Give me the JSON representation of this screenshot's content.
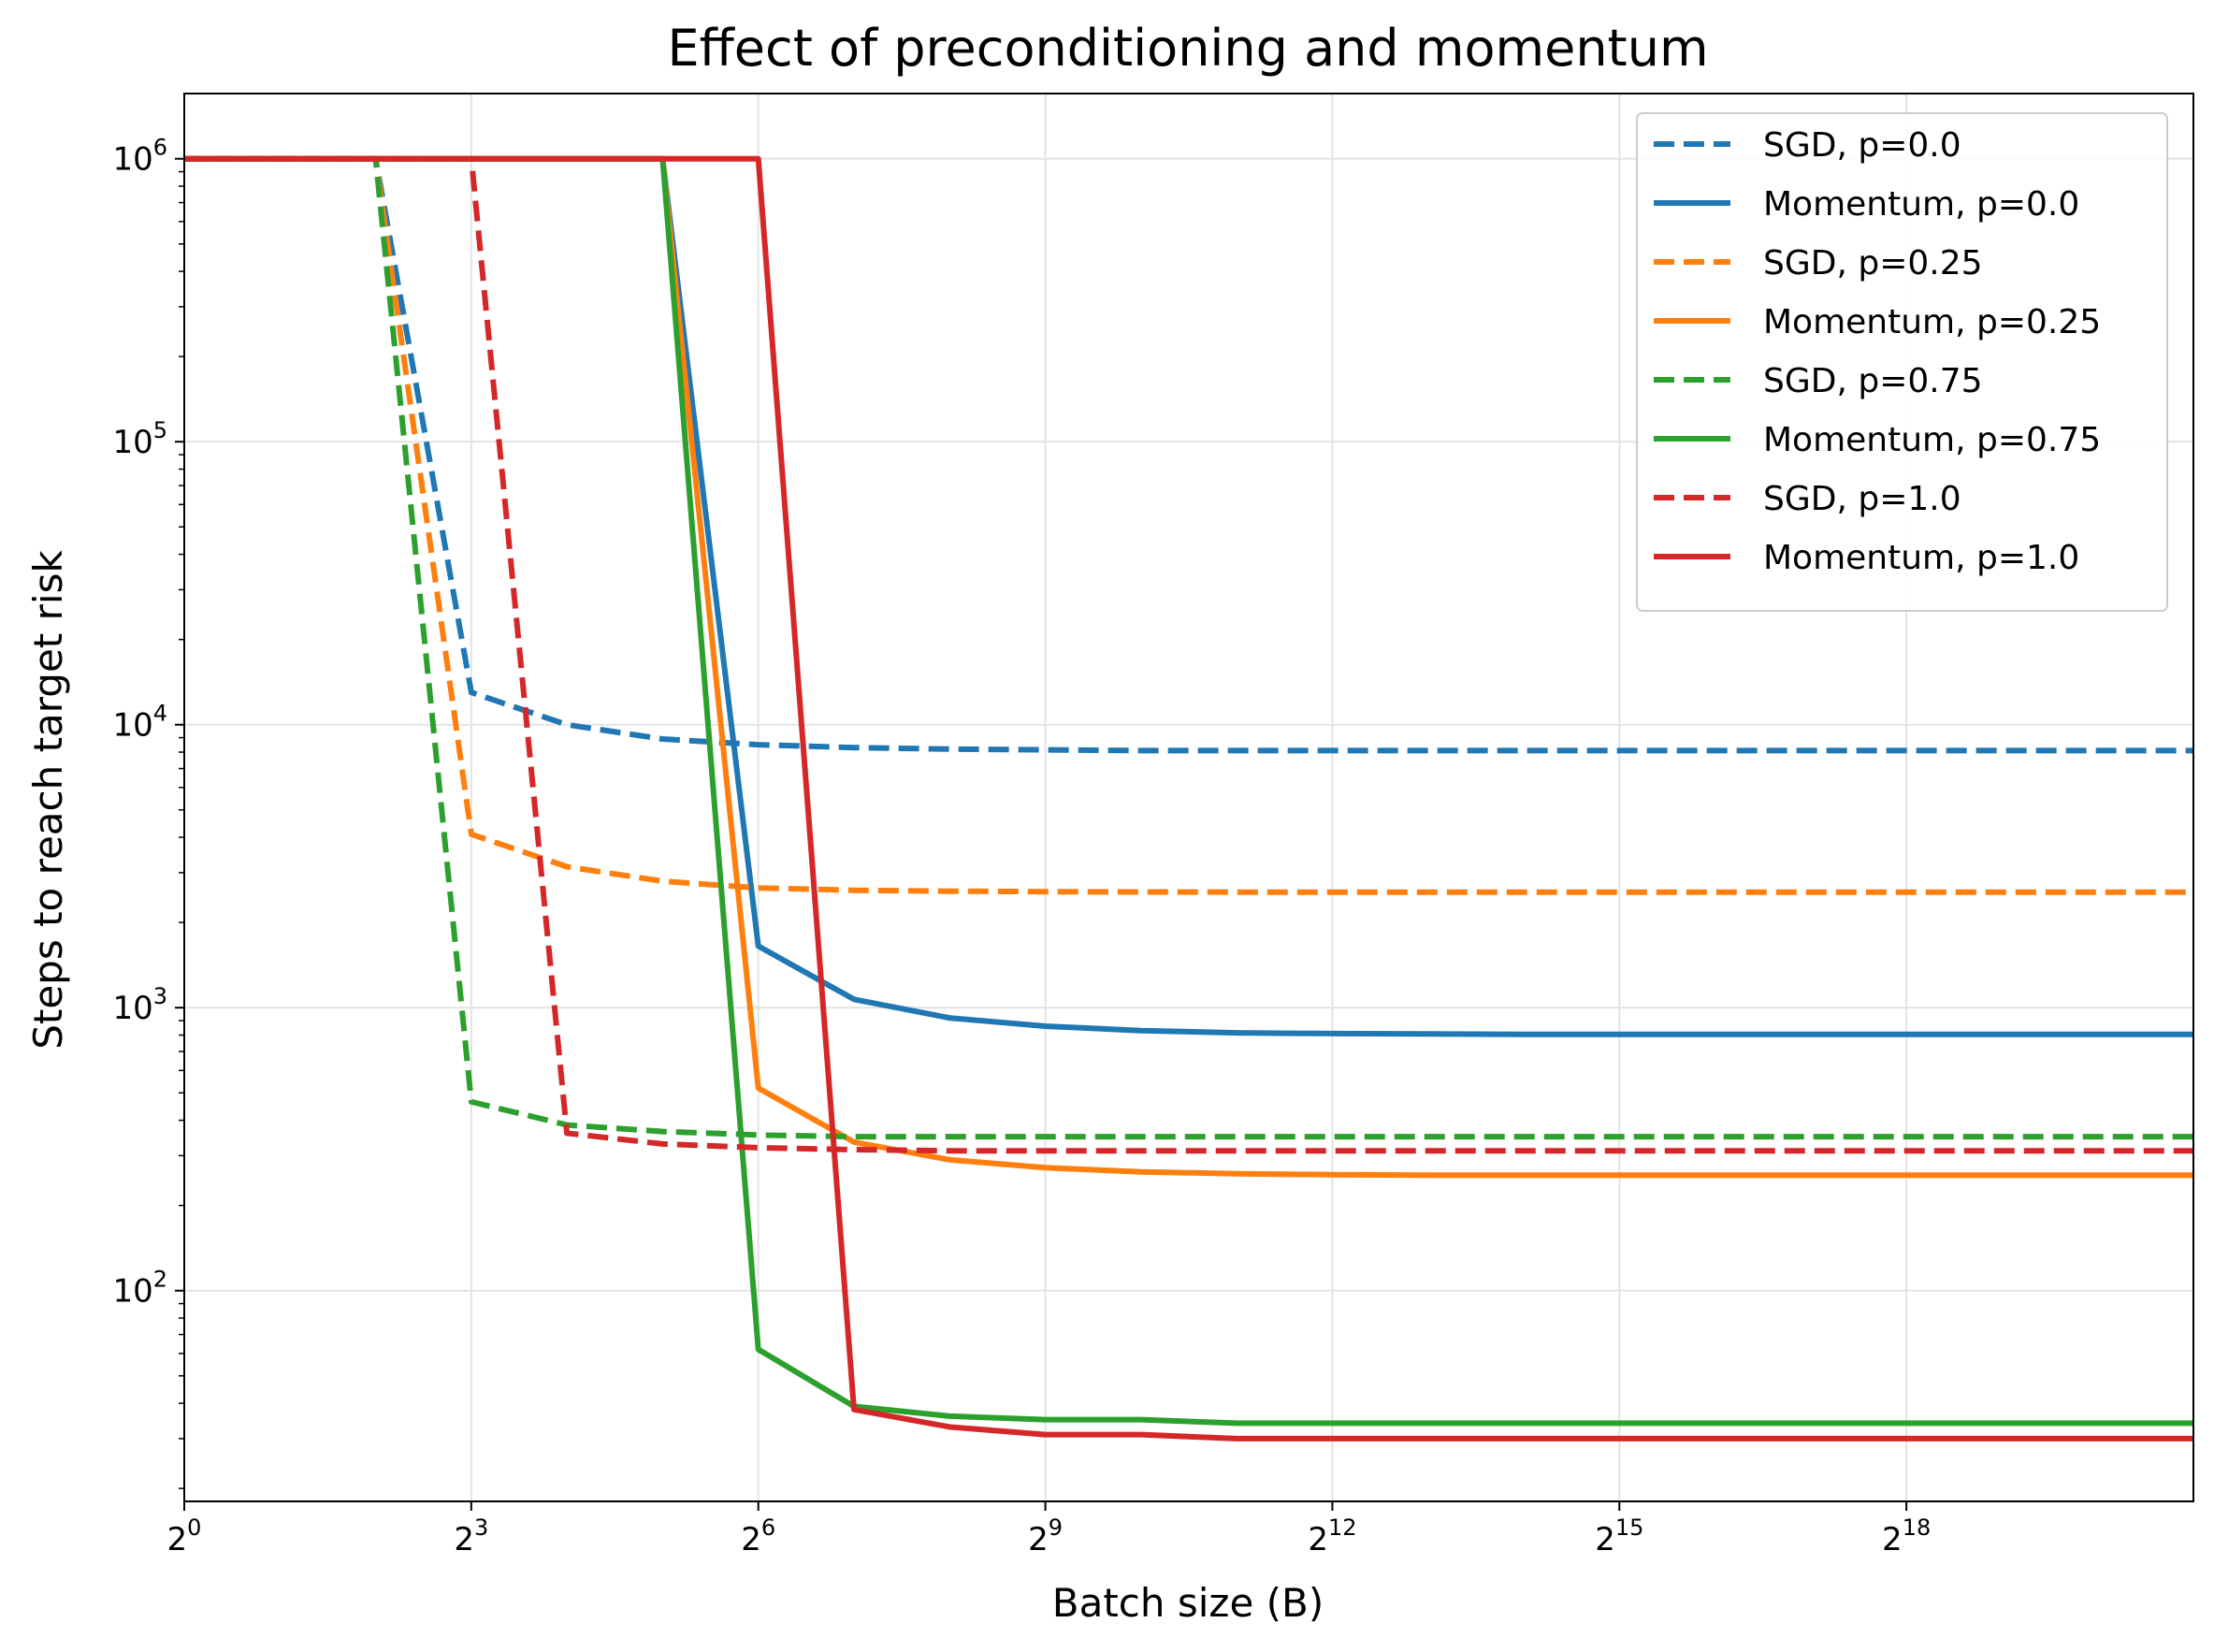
{
  "chart_data": {
    "type": "line",
    "title": "Effect of preconditioning and momentum",
    "xlabel": "Batch size (B)",
    "ylabel": "Steps to reach target risk",
    "x_scale": "log2",
    "y_scale": "log10",
    "xlim": [
      1,
      2097152
    ],
    "ylim": [
      18,
      1700000
    ],
    "x_ticks": [
      {
        "value": 1,
        "base": "2",
        "exp": "0"
      },
      {
        "value": 8,
        "base": "2",
        "exp": "3"
      },
      {
        "value": 64,
        "base": "2",
        "exp": "6"
      },
      {
        "value": 512,
        "base": "2",
        "exp": "9"
      },
      {
        "value": 4096,
        "base": "2",
        "exp": "12"
      },
      {
        "value": 32768,
        "base": "2",
        "exp": "15"
      },
      {
        "value": 262144,
        "base": "2",
        "exp": "18"
      }
    ],
    "y_ticks": [
      {
        "value": 100,
        "base": "10",
        "exp": "2"
      },
      {
        "value": 1000,
        "base": "10",
        "exp": "3"
      },
      {
        "value": 10000,
        "base": "10",
        "exp": "4"
      },
      {
        "value": 100000,
        "base": "10",
        "exp": "5"
      },
      {
        "value": 1000000,
        "base": "10",
        "exp": "6"
      }
    ],
    "grid": true,
    "legend_position": "top-right",
    "x": [
      1,
      2,
      4,
      8,
      16,
      32,
      64,
      128,
      256,
      512,
      1024,
      2048,
      4096,
      8192,
      16384,
      32768,
      65536,
      131072,
      262144,
      524288,
      1048576,
      2097152
    ],
    "series": [
      {
        "name": "SGD, p=0.0",
        "color": "#1f77b4",
        "dash": "dashed",
        "values": [
          1000000,
          1000000,
          1000000,
          13000,
          10000,
          8900,
          8500,
          8300,
          8200,
          8150,
          8100,
          8100,
          8100,
          8100,
          8100,
          8100,
          8100,
          8100,
          8100,
          8100,
          8100,
          8100
        ]
      },
      {
        "name": "Momentum, p=0.0",
        "color": "#1f77b4",
        "dash": "solid",
        "values": [
          1000000,
          1000000,
          1000000,
          1000000,
          1000000,
          1000000,
          1650,
          1070,
          920,
          860,
          830,
          815,
          810,
          808,
          805,
          805,
          805,
          805,
          805,
          805,
          805,
          805
        ]
      },
      {
        "name": "SGD, p=0.25",
        "color": "#ff7f0e",
        "dash": "dashed",
        "values": [
          1000000,
          1000000,
          1000000,
          4100,
          3150,
          2800,
          2650,
          2600,
          2580,
          2570,
          2565,
          2560,
          2560,
          2560,
          2560,
          2560,
          2560,
          2560,
          2560,
          2560,
          2560,
          2560
        ]
      },
      {
        "name": "Momentum, p=0.25",
        "color": "#ff7f0e",
        "dash": "solid",
        "values": [
          1000000,
          1000000,
          1000000,
          1000000,
          1000000,
          1000000,
          520,
          335,
          290,
          272,
          263,
          259,
          257,
          256,
          256,
          256,
          256,
          256,
          256,
          256,
          256,
          256
        ]
      },
      {
        "name": "SGD, p=0.75",
        "color": "#2ca02c",
        "dash": "dashed",
        "values": [
          1000000,
          1000000,
          1000000,
          465,
          385,
          365,
          355,
          350,
          350,
          350,
          350,
          350,
          350,
          350,
          350,
          350,
          350,
          350,
          350,
          350,
          350,
          350
        ]
      },
      {
        "name": "Momentum, p=0.75",
        "color": "#2ca02c",
        "dash": "solid",
        "values": [
          1000000,
          1000000,
          1000000,
          1000000,
          1000000,
          1000000,
          62,
          39,
          36,
          35,
          35,
          34,
          34,
          34,
          34,
          34,
          34,
          34,
          34,
          34,
          34,
          34
        ]
      },
      {
        "name": "SGD, p=1.0",
        "color": "#d62728",
        "dash": "dashed",
        "values": [
          1000000,
          1000000,
          1000000,
          1000000,
          360,
          330,
          320,
          315,
          312,
          312,
          312,
          312,
          312,
          312,
          312,
          312,
          312,
          312,
          312,
          312,
          312,
          312
        ]
      },
      {
        "name": "Momentum, p=1.0",
        "color": "#d62728",
        "dash": "solid",
        "values": [
          1000000,
          1000000,
          1000000,
          1000000,
          1000000,
          1000000,
          1000000,
          38,
          33,
          31,
          31,
          30,
          30,
          30,
          30,
          30,
          30,
          30,
          30,
          30,
          30,
          30
        ]
      }
    ]
  }
}
